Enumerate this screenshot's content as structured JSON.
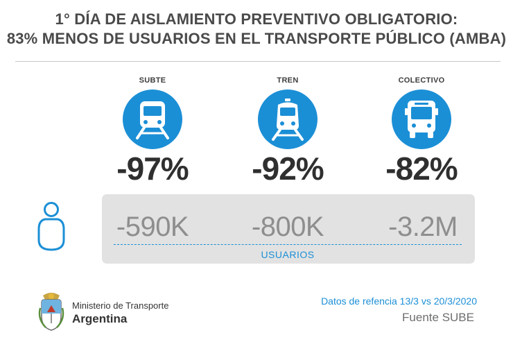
{
  "title": {
    "line1": "1° DÍA DE AISLAMIENTO PREVENTIVO OBLIGATORIO:",
    "line2": "83% MENOS DE USUARIOS EN EL TRANSPORTE PÚBLICO (AMBA)"
  },
  "modes": [
    {
      "label": "SUBTE",
      "icon": "subway-icon",
      "percent": "-97%",
      "users": "-590K"
    },
    {
      "label": "TREN",
      "icon": "train-icon",
      "percent": "-92%",
      "users": "-800K"
    },
    {
      "label": "COLECTIVO",
      "icon": "bus-icon",
      "percent": "-82%",
      "users": "-3.2M"
    }
  ],
  "users_label": "USUARIOS",
  "footer": {
    "ministry_name": "Ministerio de Transporte",
    "country": "Argentina",
    "data_reference": "Datos de refencia 13/3 vs 20/3/2020",
    "source": "Fuente SUBE"
  },
  "colors": {
    "accent": "#1b8fd6",
    "panel": "#e2e2e2",
    "text": "#3d3d3d"
  }
}
